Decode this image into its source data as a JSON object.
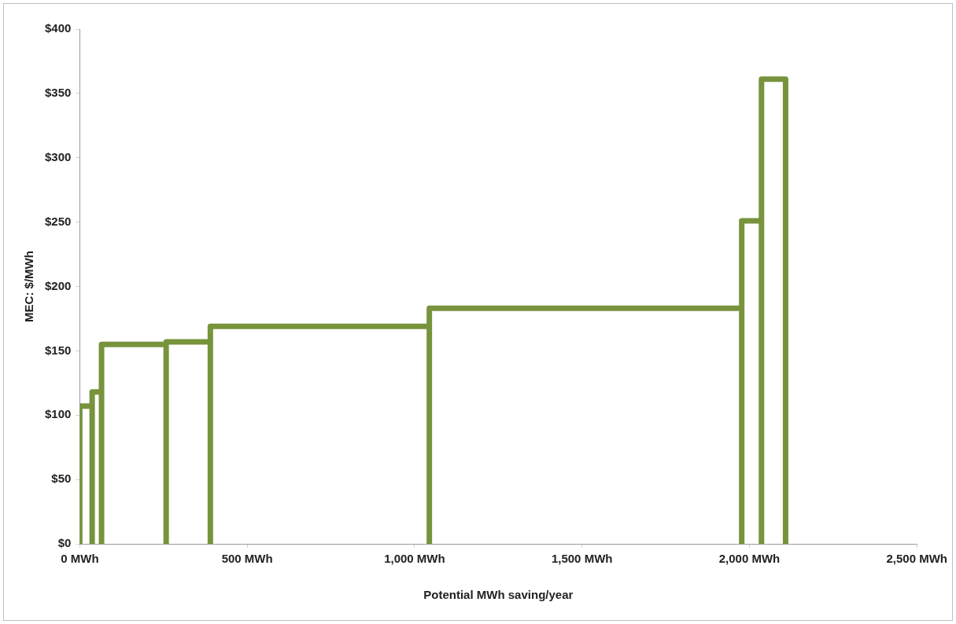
{
  "chart_data": {
    "type": "line",
    "xlabel": "Potential MWh saving/year",
    "ylabel": "MEC: $/MWh",
    "x": [
      0,
      0,
      37,
      37,
      37,
      65,
      65,
      65,
      258,
      258,
      258,
      390,
      390,
      390,
      1044,
      1044,
      1044,
      1977,
      1977,
      1977,
      2036,
      2036,
      2036,
      2108,
      2108
    ],
    "series": [
      {
        "color": "#77933c",
        "values": [
          0,
          107,
          107,
          0,
          118,
          118,
          0,
          155,
          155,
          0,
          157,
          157,
          0,
          169,
          169,
          0,
          183,
          183,
          0,
          251,
          251,
          0,
          361,
          361,
          0
        ]
      }
    ],
    "xlim": [
      0,
      2500
    ],
    "xticks": [
      {
        "value": 0,
        "label": "0 MWh"
      },
      {
        "value": 500,
        "label": "500 MWh"
      },
      {
        "value": 1000,
        "label": "1,000 MWh"
      },
      {
        "value": 1500,
        "label": "1,500 MWh"
      },
      {
        "value": 2000,
        "label": "2,000 MWh"
      },
      {
        "value": 2500,
        "label": "2,500 MWh"
      }
    ],
    "ylim": [
      0,
      400
    ],
    "yticks": [
      {
        "value": 0,
        "label": "$0"
      },
      {
        "value": 50,
        "label": "$50"
      },
      {
        "value": 100,
        "label": "$100"
      },
      {
        "value": 150,
        "label": "$150"
      },
      {
        "value": 200,
        "label": "$200"
      },
      {
        "value": 250,
        "label": "$250"
      },
      {
        "value": 300,
        "label": "$300"
      },
      {
        "value": 350,
        "label": "$350"
      },
      {
        "value": 400,
        "label": "$400"
      }
    ],
    "grid": false,
    "legend": false,
    "marker": "none"
  }
}
